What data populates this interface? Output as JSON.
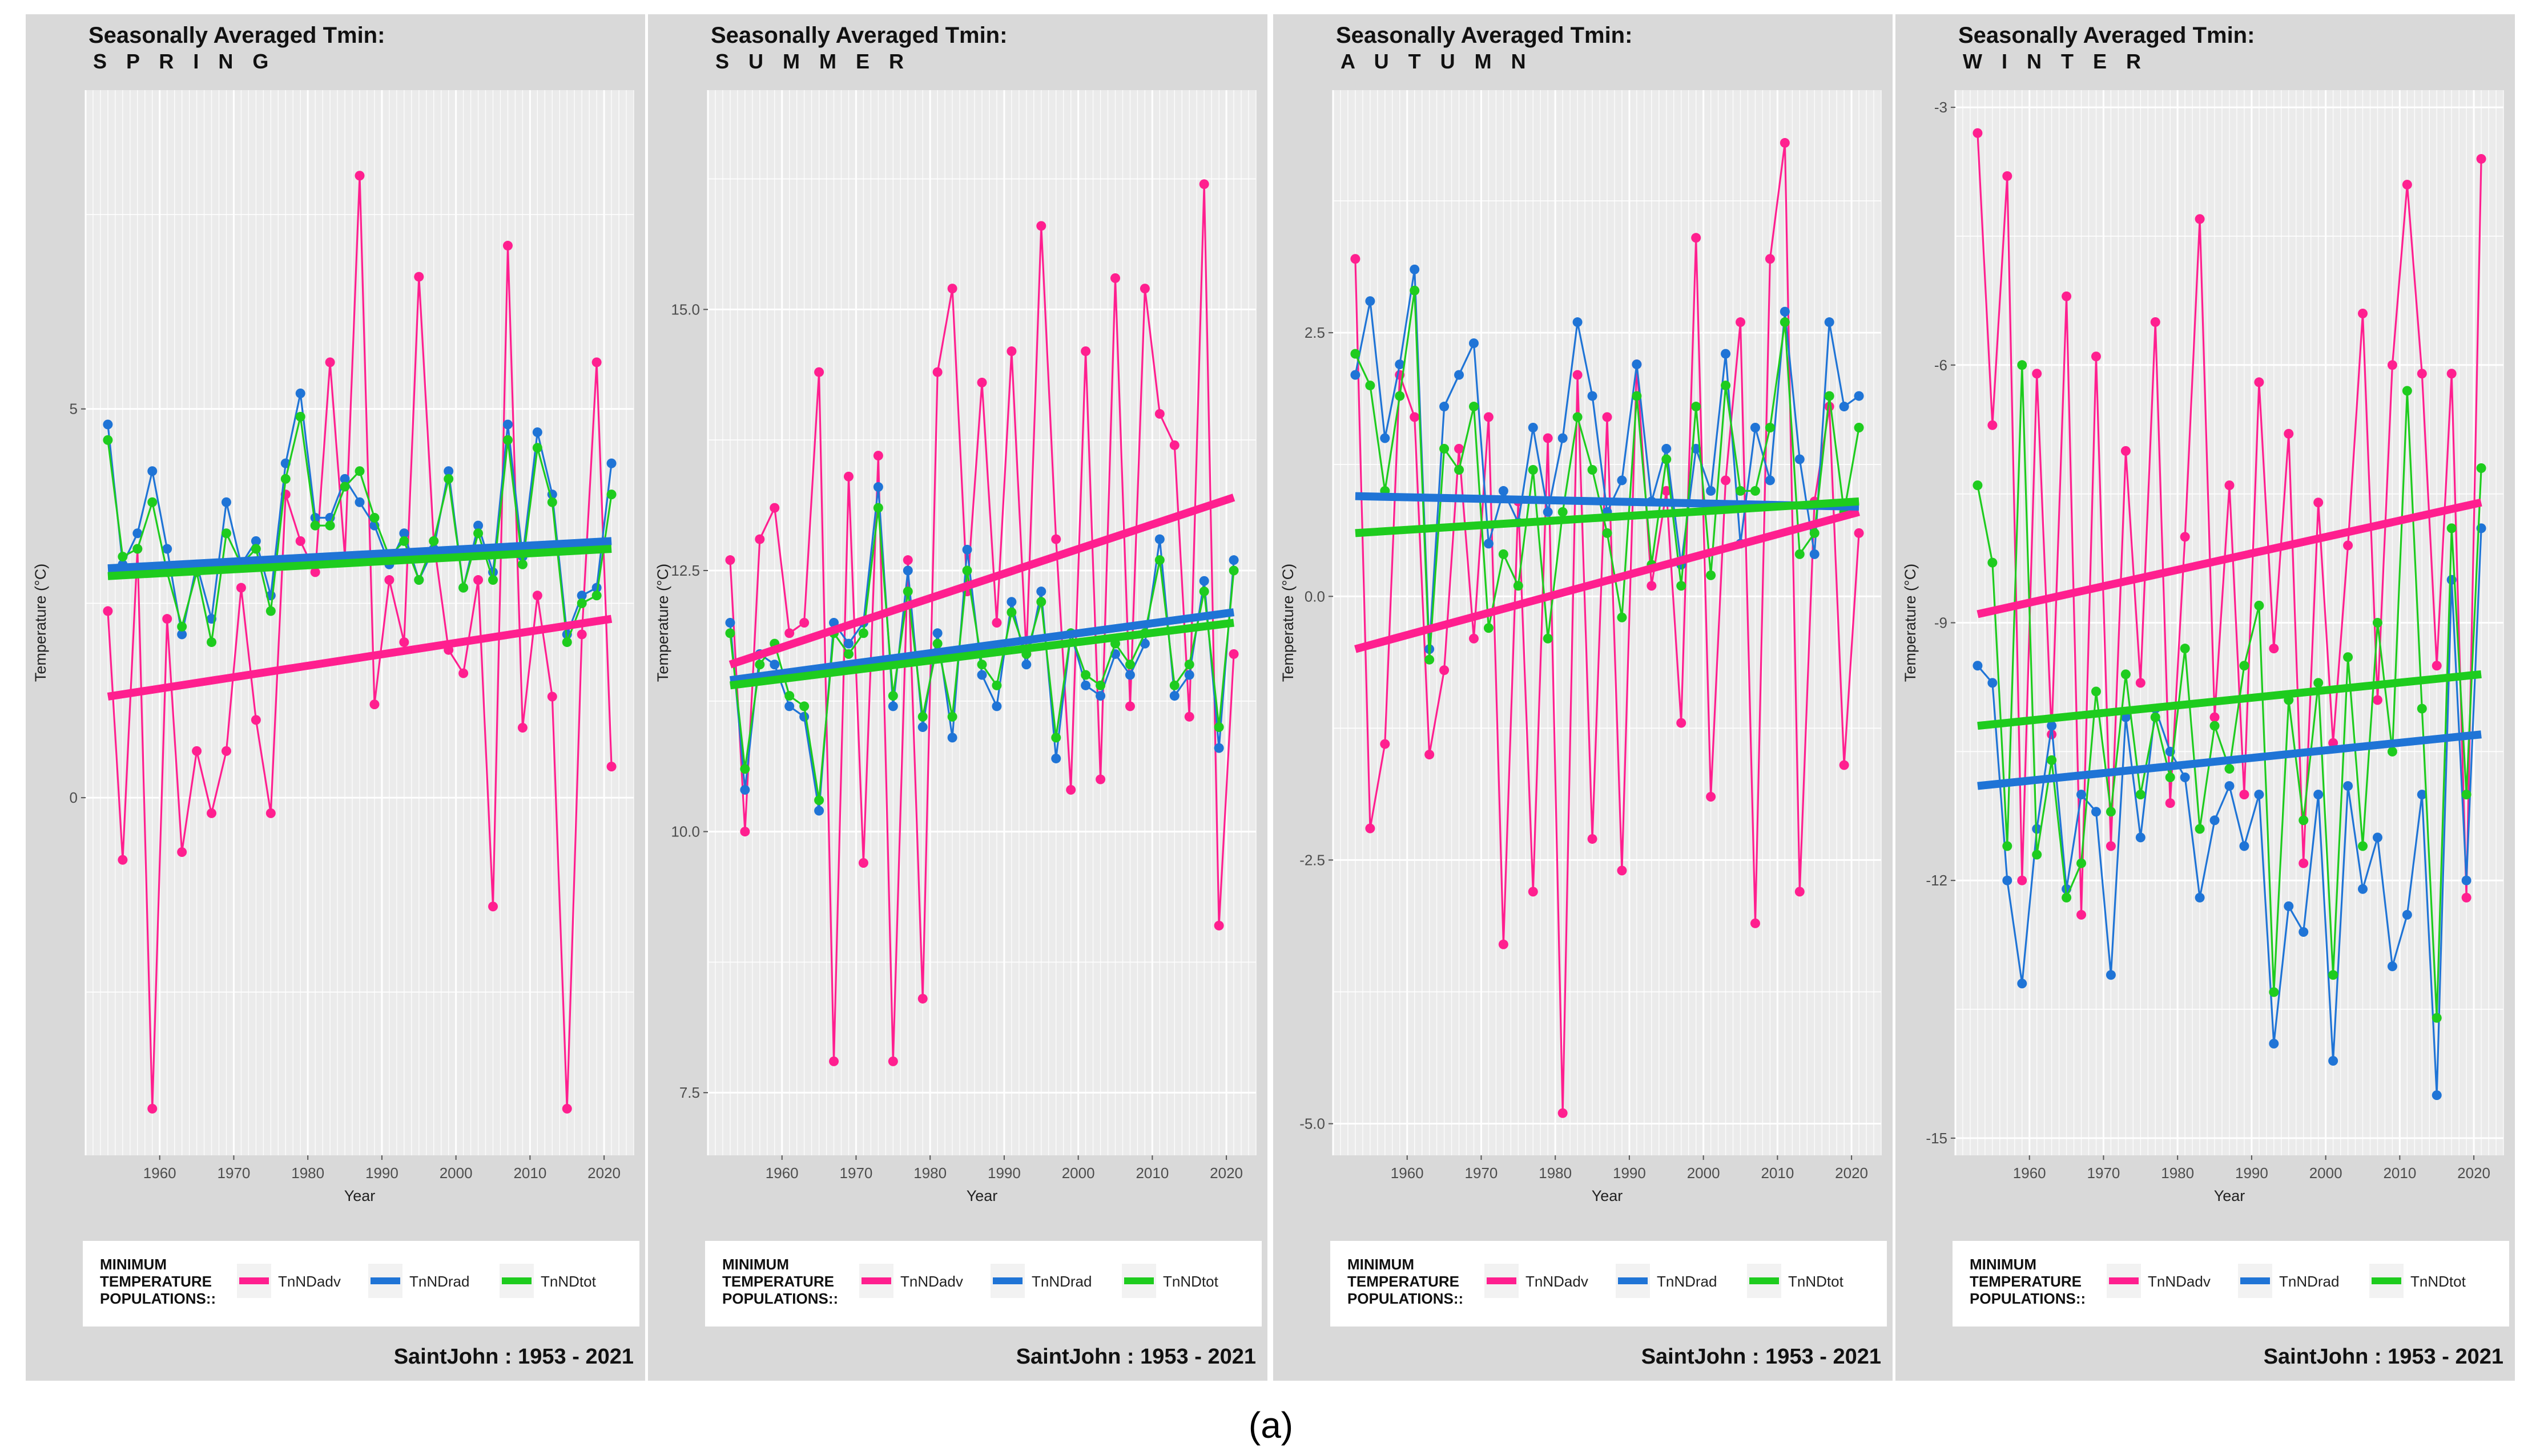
{
  "figure_label": "(a)",
  "colors": {
    "panel_bg": "#d9d9d9",
    "plot_bg": "#ebebeb",
    "grid": "#ffffff",
    "adv": "#ff1f8f",
    "rad": "#1f74d6",
    "tot": "#1ecc1e",
    "legend_bg": "#ffffff"
  },
  "legend": {
    "title_lines": [
      "MINIMUM",
      "TEMPERATURE",
      "POPULATIONS::"
    ],
    "items": [
      "TnNDadv",
      "TnNDrad",
      "TnNDtot"
    ]
  },
  "caption": "SaintJohn :  1953 - 2021",
  "chart_data": [
    {
      "type": "line",
      "title": "Seasonally Averaged Tmin:",
      "season": "S P R I N G",
      "xlabel": "Year",
      "ylabel": "Temperature (°C)",
      "xlim": [
        1950,
        2024
      ],
      "ylim": [
        -4.6,
        9.1
      ],
      "xticks": [
        1960,
        1970,
        1980,
        1990,
        2000,
        2010,
        2020
      ],
      "xtick_labels": [
        "1960",
        "1970",
        "1980",
        "1990",
        "2000",
        "2010",
        "2020"
      ],
      "yticks": [
        0,
        5
      ],
      "ytick_labels": [
        "0",
        "5"
      ],
      "x": [
        1953,
        1955,
        1957,
        1959,
        1961,
        1963,
        1965,
        1967,
        1969,
        1971,
        1973,
        1975,
        1977,
        1979,
        1981,
        1983,
        1985,
        1987,
        1989,
        1991,
        1993,
        1995,
        1997,
        1999,
        2001,
        2003,
        2005,
        2007,
        2009,
        2011,
        2013,
        2015,
        2017,
        2019,
        2021
      ],
      "series": [
        {
          "name": "TnNDadv",
          "values": [
            2.4,
            -0.8,
            3.2,
            -4.0,
            2.3,
            -0.7,
            0.6,
            -0.2,
            0.6,
            2.7,
            1.0,
            -0.2,
            3.9,
            3.3,
            2.9,
            5.6,
            3.1,
            8.0,
            1.2,
            2.8,
            2.0,
            6.7,
            3.3,
            1.9,
            1.6,
            2.8,
            -1.4,
            7.1,
            0.9,
            2.6,
            1.3,
            -4.0,
            2.1,
            5.6,
            0.4
          ],
          "trend": [
            1.3,
            2.3
          ]
        },
        {
          "name": "TnNDrad",
          "values": [
            4.8,
            3.0,
            3.4,
            4.2,
            3.2,
            2.1,
            3.0,
            2.3,
            3.8,
            3.0,
            3.3,
            2.6,
            4.3,
            5.2,
            3.6,
            3.6,
            4.1,
            3.8,
            3.5,
            3.0,
            3.4,
            2.8,
            3.2,
            4.2,
            2.7,
            3.5,
            2.9,
            4.8,
            3.1,
            4.7,
            3.9,
            2.1,
            2.6,
            2.7,
            4.3
          ],
          "trend": [
            2.95,
            3.3
          ]
        },
        {
          "name": "TnNDtot",
          "values": [
            4.6,
            3.1,
            3.2,
            3.8,
            2.9,
            2.2,
            2.9,
            2.0,
            3.4,
            3.0,
            3.2,
            2.4,
            4.1,
            4.9,
            3.5,
            3.5,
            4.0,
            4.2,
            3.6,
            3.1,
            3.3,
            2.8,
            3.3,
            4.1,
            2.7,
            3.4,
            2.8,
            4.6,
            3.0,
            4.5,
            3.8,
            2.0,
            2.5,
            2.6,
            3.9
          ],
          "trend": [
            2.85,
            3.2
          ]
        }
      ]
    },
    {
      "type": "line",
      "title": "Seasonally Averaged Tmin:",
      "season": "S U M M E R",
      "xlabel": "Year",
      "ylabel": "Temperature (°C)",
      "xlim": [
        1950,
        2024
      ],
      "ylim": [
        6.9,
        17.1
      ],
      "xticks": [
        1960,
        1970,
        1980,
        1990,
        2000,
        2010,
        2020
      ],
      "xtick_labels": [
        "1960",
        "1970",
        "1980",
        "1990",
        "2000",
        "2010",
        "2020"
      ],
      "yticks": [
        7.5,
        10,
        12.5,
        15
      ],
      "ytick_labels": [
        "7.5",
        "10.0",
        "12.5",
        "15.0"
      ],
      "x": [
        1953,
        1955,
        1957,
        1959,
        1961,
        1963,
        1965,
        1967,
        1969,
        1971,
        1973,
        1975,
        1977,
        1979,
        1981,
        1983,
        1985,
        1987,
        1989,
        1991,
        1993,
        1995,
        1997,
        1999,
        2001,
        2003,
        2005,
        2007,
        2009,
        2011,
        2013,
        2015,
        2017,
        2019,
        2021
      ],
      "series": [
        {
          "name": "TnNDadv",
          "values": [
            12.6,
            10.0,
            12.8,
            13.1,
            11.9,
            12.0,
            14.4,
            7.8,
            13.4,
            9.7,
            13.6,
            7.8,
            12.6,
            8.4,
            14.4,
            15.2,
            12.3,
            14.3,
            12.0,
            14.6,
            11.7,
            15.8,
            12.8,
            10.4,
            14.6,
            10.5,
            15.3,
            11.2,
            15.2,
            14.0,
            13.7,
            11.1,
            16.2,
            9.1,
            11.7
          ],
          "trend": [
            11.6,
            13.2
          ]
        },
        {
          "name": "TnNDrad",
          "values": [
            12.0,
            10.4,
            11.7,
            11.6,
            11.2,
            11.1,
            10.2,
            12.0,
            11.8,
            12.0,
            13.3,
            11.2,
            12.5,
            11.0,
            11.9,
            10.9,
            12.7,
            11.5,
            11.2,
            12.2,
            11.6,
            12.3,
            10.7,
            11.9,
            11.4,
            11.3,
            11.7,
            11.5,
            11.8,
            12.8,
            11.3,
            11.5,
            12.4,
            10.8,
            12.6
          ],
          "trend": [
            11.45,
            12.1
          ]
        },
        {
          "name": "TnNDtot",
          "values": [
            11.9,
            10.6,
            11.6,
            11.8,
            11.3,
            11.2,
            10.3,
            11.9,
            11.7,
            11.9,
            13.1,
            11.3,
            12.3,
            11.1,
            11.8,
            11.1,
            12.5,
            11.6,
            11.4,
            12.1,
            11.7,
            12.2,
            10.9,
            11.9,
            11.5,
            11.4,
            11.8,
            11.6,
            11.9,
            12.6,
            11.4,
            11.6,
            12.3,
            11.0,
            12.5
          ],
          "trend": [
            11.4,
            12.0
          ]
        }
      ]
    },
    {
      "type": "line",
      "title": "Seasonally Averaged Tmin:",
      "season": "A U T U M N",
      "xlabel": "Year",
      "ylabel": "Temperature (°C)",
      "xlim": [
        1950,
        2024
      ],
      "ylim": [
        -5.3,
        4.8
      ],
      "xticks": [
        1960,
        1970,
        1980,
        1990,
        2000,
        2010,
        2020
      ],
      "xtick_labels": [
        "1960",
        "1970",
        "1980",
        "1990",
        "2000",
        "2010",
        "2020"
      ],
      "yticks": [
        -5,
        -2.5,
        0,
        2.5
      ],
      "ytick_labels": [
        "-5.0",
        "-2.5",
        "0.0",
        "2.5"
      ],
      "x": [
        1953,
        1955,
        1957,
        1959,
        1961,
        1963,
        1965,
        1967,
        1969,
        1971,
        1973,
        1975,
        1977,
        1979,
        1981,
        1983,
        1985,
        1987,
        1989,
        1991,
        1993,
        1995,
        1997,
        1999,
        2001,
        2003,
        2005,
        2007,
        2009,
        2011,
        2013,
        2015,
        2017,
        2019,
        2021
      ],
      "series": [
        {
          "name": "TnNDadv",
          "values": [
            3.2,
            -2.2,
            -1.4,
            2.1,
            1.7,
            -1.5,
            -0.7,
            1.4,
            -0.4,
            1.7,
            -3.3,
            0.9,
            -2.8,
            1.5,
            -4.9,
            2.1,
            -2.3,
            1.7,
            -2.6,
            2.2,
            0.1,
            1.0,
            -1.2,
            3.4,
            -1.9,
            1.1,
            2.6,
            -3.1,
            3.2,
            4.3,
            -2.8,
            0.9,
            1.8,
            -1.6,
            0.6
          ],
          "trend": [
            -0.5,
            0.8
          ]
        },
        {
          "name": "TnNDrad",
          "values": [
            2.1,
            2.8,
            1.5,
            2.2,
            3.1,
            -0.5,
            1.8,
            2.1,
            2.4,
            0.5,
            1.0,
            0.7,
            1.6,
            0.8,
            1.5,
            2.6,
            1.9,
            0.8,
            1.1,
            2.2,
            0.9,
            1.4,
            0.3,
            1.4,
            1.0,
            2.3,
            0.5,
            1.6,
            1.1,
            2.7,
            1.3,
            0.4,
            2.6,
            1.8,
            1.9
          ],
          "trend": [
            0.95,
            0.85
          ]
        },
        {
          "name": "TnNDtot",
          "values": [
            2.3,
            2.0,
            1.0,
            1.9,
            2.9,
            -0.6,
            1.4,
            1.2,
            1.8,
            -0.3,
            0.4,
            0.1,
            1.2,
            -0.4,
            0.8,
            1.7,
            1.2,
            0.6,
            -0.2,
            1.9,
            0.3,
            1.3,
            0.1,
            1.8,
            0.2,
            2.0,
            1.0,
            1.0,
            1.6,
            2.6,
            0.4,
            0.6,
            1.9,
            0.8,
            1.6
          ],
          "trend": [
            0.6,
            0.9
          ]
        }
      ]
    },
    {
      "type": "line",
      "title": "Seasonally Averaged Tmin:",
      "season": "W I N T E R",
      "xlabel": "Year",
      "ylabel": "Temperature (°C)",
      "xlim": [
        1950,
        2024
      ],
      "ylim": [
        -15.2,
        -2.8
      ],
      "xticks": [
        1960,
        1970,
        1980,
        1990,
        2000,
        2010,
        2020
      ],
      "xtick_labels": [
        "1960",
        "1970",
        "1980",
        "1990",
        "2000",
        "2010",
        "2020"
      ],
      "yticks": [
        -15,
        -12,
        -9,
        -6,
        -3
      ],
      "ytick_labels": [
        "-15",
        "-12",
        "-9",
        "-6",
        "-3"
      ],
      "x": [
        1953,
        1955,
        1957,
        1959,
        1961,
        1963,
        1965,
        1967,
        1969,
        1971,
        1973,
        1975,
        1977,
        1979,
        1981,
        1983,
        1985,
        1987,
        1989,
        1991,
        1993,
        1995,
        1997,
        1999,
        2001,
        2003,
        2005,
        2007,
        2009,
        2011,
        2013,
        2015,
        2017,
        2019,
        2021
      ],
      "series": [
        {
          "name": "TnNDadv",
          "values": [
            -3.3,
            -6.7,
            -3.8,
            -12.0,
            -6.1,
            -10.3,
            -5.2,
            -12.4,
            -5.9,
            -11.6,
            -7.0,
            -9.7,
            -5.5,
            -11.1,
            -8.0,
            -4.3,
            -10.1,
            -7.4,
            -11.0,
            -6.2,
            -9.3,
            -6.8,
            -11.8,
            -7.6,
            -10.4,
            -8.1,
            -5.4,
            -9.9,
            -6.0,
            -3.9,
            -6.1,
            -9.5,
            -6.1,
            -12.2,
            -3.6
          ],
          "trend": [
            -8.9,
            -7.6
          ]
        },
        {
          "name": "TnNDrad",
          "values": [
            -9.5,
            -9.7,
            -12.0,
            -13.2,
            -11.4,
            -10.2,
            -12.1,
            -11.0,
            -11.2,
            -13.1,
            -10.1,
            -11.5,
            -10.0,
            -10.5,
            -10.8,
            -12.2,
            -11.3,
            -10.9,
            -11.6,
            -11.0,
            -13.9,
            -12.3,
            -12.6,
            -11.0,
            -14.1,
            -10.9,
            -12.1,
            -11.5,
            -13.0,
            -12.4,
            -11.0,
            -14.5,
            -8.5,
            -12.0,
            -7.9
          ],
          "trend": [
            -10.9,
            -10.3
          ]
        },
        {
          "name": "TnNDtot",
          "values": [
            -7.4,
            -8.3,
            -11.6,
            -6.0,
            -11.7,
            -10.6,
            -12.2,
            -11.8,
            -9.8,
            -11.2,
            -9.6,
            -11.0,
            -10.1,
            -10.8,
            -9.3,
            -11.4,
            -10.2,
            -10.7,
            -9.5,
            -8.8,
            -13.3,
            -9.9,
            -11.3,
            -9.7,
            -13.1,
            -9.4,
            -11.6,
            -9.0,
            -10.5,
            -6.3,
            -10.0,
            -13.6,
            -7.9,
            -11.0,
            -7.2
          ],
          "trend": [
            -10.2,
            -9.6
          ]
        }
      ]
    }
  ]
}
